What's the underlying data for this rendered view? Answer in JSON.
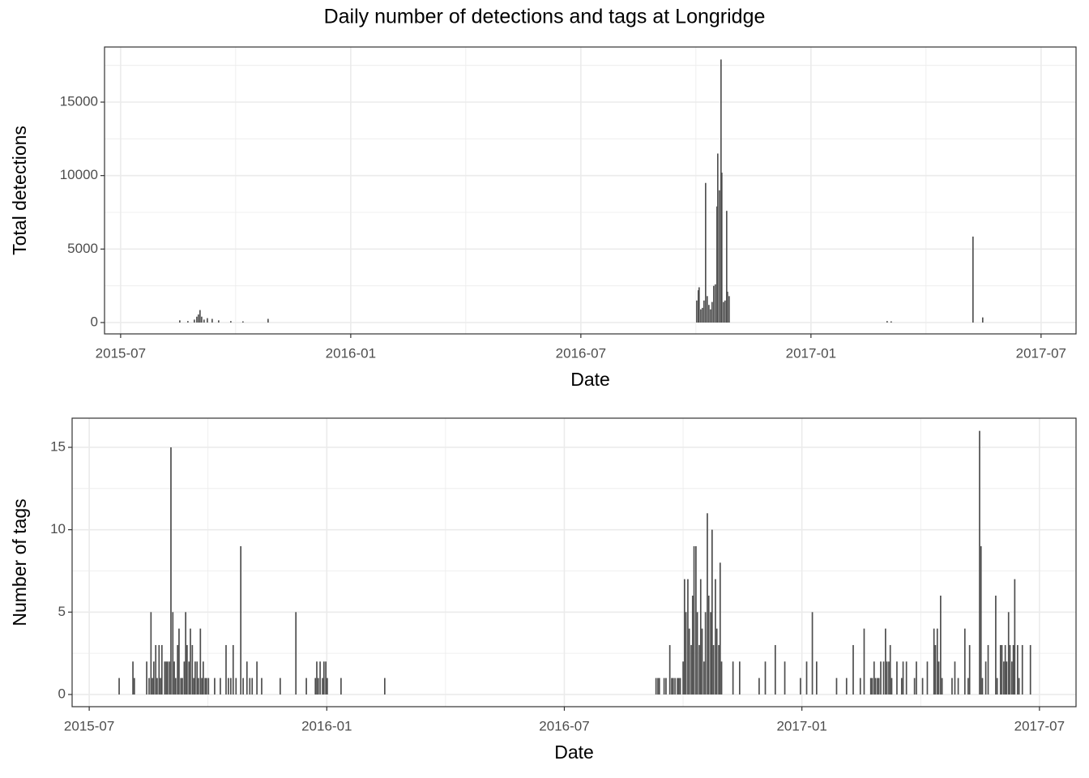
{
  "title": "Daily number of detections and tags at Longridge",
  "chart_data": [
    {
      "type": "bar",
      "xlabel": "Date",
      "ylabel": "Total detections",
      "color": "#4d4d4d",
      "grid": true,
      "xlim": [
        2015.465,
        2017.576
      ],
      "ylim": [
        -772,
        18750
      ],
      "xticks": [
        {
          "value": 2015.5,
          "label": "2015-07"
        },
        {
          "value": 2016,
          "label": "2016-01"
        },
        {
          "value": 2016.5,
          "label": "2016-07"
        },
        {
          "value": 2017,
          "label": "2017-01"
        },
        {
          "value": 2017.5,
          "label": "2017-07"
        }
      ],
      "yticks": [
        0,
        5000,
        10000,
        15000
      ],
      "x": [
        2015.6285,
        2015.6461,
        2015.6602,
        2015.6655,
        2015.669,
        2015.6725,
        2015.6761,
        2015.6813,
        2015.6884,
        2015.6989,
        2015.713,
        2015.7394,
        2015.7658,
        2015.8204,
        2016.7518,
        2016.7553,
        2016.757,
        2016.7606,
        2016.7641,
        2016.7676,
        2016.7711,
        2016.7746,
        2016.7782,
        2016.7817,
        2016.7852,
        2016.7887,
        2016.7923,
        2016.7958,
        2016.7975,
        2016.8011,
        2016.8046,
        2016.8063,
        2016.8099,
        2016.8134,
        2016.8169,
        2016.8187,
        2016.8222,
        2017.1655,
        2017.1743,
        2017.3521,
        2017.3732
      ],
      "values": [
        150,
        100,
        200,
        400,
        550,
        850,
        400,
        200,
        300,
        250,
        150,
        100,
        80,
        250,
        1500,
        2200,
        2400,
        900,
        1000,
        1500,
        9500,
        1800,
        1200,
        900,
        1400,
        2500,
        2600,
        7900,
        11500,
        9000,
        17900,
        10200,
        1400,
        1500,
        7600,
        2100,
        1800,
        100,
        80,
        5850,
        350
      ]
    },
    {
      "type": "bar",
      "xlabel": "Date",
      "ylabel": "Number of tags",
      "color": "#4d4d4d",
      "grid": true,
      "xlim": [
        2015.464,
        2017.577
      ],
      "ylim": [
        -0.74,
        16.77
      ],
      "xticks": [
        {
          "value": 2015.5,
          "label": "2015-07"
        },
        {
          "value": 2016,
          "label": "2016-01"
        },
        {
          "value": 2016.5,
          "label": "2016-07"
        },
        {
          "value": 2017,
          "label": "2017-01"
        },
        {
          "value": 2017.5,
          "label": "2017-07"
        }
      ],
      "yticks": [
        0,
        5,
        10,
        15
      ],
      "x": [
        2015.563,
        2015.592,
        2015.595,
        2015.621,
        2015.626,
        2015.63,
        2015.633,
        2015.636,
        2015.64,
        2015.643,
        2015.647,
        2015.65,
        2015.653,
        2015.659,
        2015.662,
        2015.665,
        2015.669,
        2015.672,
        2015.676,
        2015.679,
        2015.682,
        2015.686,
        2015.689,
        2015.693,
        2015.696,
        2015.7,
        2015.703,
        2015.706,
        2015.71,
        2015.713,
        2015.717,
        2015.72,
        2015.723,
        2015.727,
        2015.73,
        2015.734,
        2015.737,
        2015.74,
        2015.744,
        2015.747,
        2015.751,
        2015.764,
        2015.776,
        2015.788,
        2015.793,
        2015.798,
        2015.803,
        2015.809,
        2015.819,
        2015.824,
        2015.832,
        2015.838,
        2015.843,
        2015.853,
        2015.863,
        2015.902,
        2015.935,
        2015.957,
        2015.976,
        2015.979,
        2015.982,
        2015.986,
        2015.991,
        2015.994,
        2015.998,
        2016.001,
        2016.03,
        2016.122,
        2016.693,
        2016.697,
        2016.7,
        2016.71,
        2016.714,
        2016.722,
        2016.726,
        2016.729,
        2016.733,
        2016.738,
        2016.741,
        2016.744,
        2016.75,
        2016.753,
        2016.756,
        2016.76,
        2016.763,
        2016.767,
        2016.77,
        2016.773,
        2016.777,
        2016.78,
        2016.784,
        2016.787,
        2016.79,
        2016.794,
        2016.797,
        2016.801,
        2016.804,
        2016.808,
        2016.811,
        2016.814,
        2016.818,
        2016.821,
        2016.825,
        2016.828,
        2016.831,
        2016.855,
        2016.869,
        2016.91,
        2016.923,
        2016.944,
        2016.964,
        2016.997,
        2017.01,
        2017.022,
        2017.031,
        2017.073,
        2017.094,
        2017.108,
        2017.123,
        2017.131,
        2017.145,
        2017.148,
        2017.152,
        2017.155,
        2017.159,
        2017.162,
        2017.166,
        2017.172,
        2017.176,
        2017.179,
        2017.183,
        2017.186,
        2017.189,
        2017.2,
        2017.21,
        2017.213,
        2017.22,
        2017.237,
        2017.241,
        2017.254,
        2017.264,
        2017.278,
        2017.281,
        2017.285,
        2017.288,
        2017.292,
        2017.295,
        2017.316,
        2017.322,
        2017.329,
        2017.343,
        2017.35,
        2017.353,
        2017.374,
        2017.377,
        2017.38,
        2017.387,
        2017.392,
        2017.408,
        2017.411,
        2017.418,
        2017.421,
        2017.425,
        2017.428,
        2017.431,
        2017.435,
        2017.438,
        2017.442,
        2017.445,
        2017.448,
        2017.454,
        2017.457,
        2017.464,
        2017.481
      ],
      "values": [
        1,
        2,
        1,
        2,
        1,
        5,
        1,
        2,
        3,
        1,
        3,
        1,
        3,
        2,
        2,
        2,
        2,
        15,
        5,
        2,
        1,
        3,
        4,
        1,
        1,
        2,
        5,
        3,
        2,
        4,
        3,
        1,
        2,
        2,
        1,
        4,
        1,
        2,
        1,
        1,
        1,
        1,
        1,
        3,
        1,
        1,
        3,
        1,
        9,
        1,
        2,
        1,
        1,
        2,
        1,
        1,
        5,
        1,
        1,
        2,
        1,
        2,
        1,
        2,
        2,
        1,
        1,
        1,
        1,
        1,
        1,
        1,
        1,
        3,
        1,
        1,
        1,
        1,
        1,
        1,
        2,
        7,
        5,
        7,
        4,
        3,
        6,
        9,
        9,
        5,
        3,
        7,
        4,
        2,
        5,
        11,
        6,
        5,
        10,
        3,
        7,
        4,
        3,
        8,
        2,
        2,
        2,
        1,
        2,
        3,
        2,
        1,
        2,
        5,
        2,
        1,
        1,
        3,
        1,
        4,
        1,
        1,
        2,
        1,
        1,
        1,
        2,
        2,
        4,
        2,
        2,
        3,
        1,
        2,
        1,
        2,
        2,
        1,
        2,
        1,
        2,
        4,
        3,
        4,
        2,
        6,
        1,
        1,
        2,
        1,
        4,
        1,
        3,
        16,
        9,
        1,
        2,
        3,
        6,
        1,
        3,
        3,
        2,
        3,
        2,
        5,
        3,
        2,
        3,
        7,
        3,
        1,
        3,
        3
      ]
    }
  ]
}
